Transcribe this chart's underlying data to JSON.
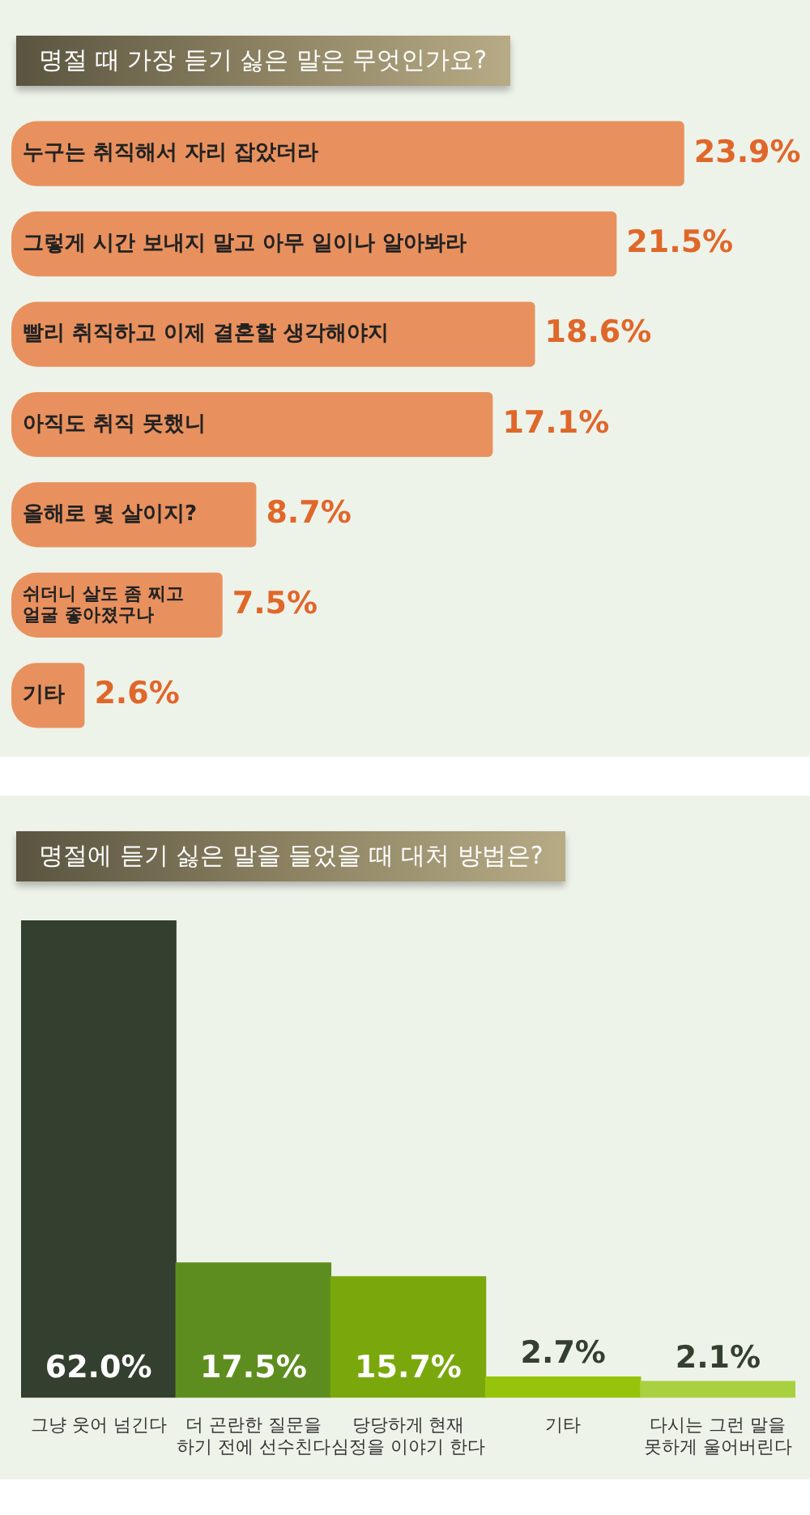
{
  "chart_data": [
    {
      "type": "bar",
      "orientation": "horizontal",
      "title": "명절 때 가장 듣기 싫은 말은 무엇인가요?",
      "categories": [
        "누구는 취직해서 자리 잡았더라",
        "그렇게 시간 보내지 말고 아무 일이나 알아봐라",
        "빨리 취직하고 이제 결혼할 생각해야지",
        "아직도 취직 못했니",
        "올해로 몇 살이지?",
        "쉬더니 살도 좀 찌고\n얼굴 좋아졌구나",
        "기타"
      ],
      "values": [
        23.9,
        21.5,
        18.6,
        17.1,
        8.7,
        7.5,
        2.6
      ],
      "value_labels": [
        "23.9%",
        "21.5%",
        "18.6%",
        "17.1%",
        "8.7%",
        "7.5%",
        "2.6%"
      ],
      "color": "#e8915e"
    },
    {
      "type": "bar",
      "title": "명절에 듣기 싫은 말을 들었을 때 대처 방법은?",
      "categories": [
        "그냥 웃어 넘긴다",
        "더 곤란한 질문을\n하기 전에 선수친다",
        "당당하게 현재\n심정을 이야기 한다",
        "기타",
        "다시는 그런 말을\n못하게 울어버린다"
      ],
      "values": [
        62.0,
        17.5,
        15.7,
        2.7,
        2.1
      ],
      "value_labels": [
        "62.0%",
        "17.5%",
        "15.7%",
        "2.7%",
        "2.1%"
      ],
      "colors": [
        "#333f2f",
        "#5e8d1f",
        "#7aa80c",
        "#97c40b",
        "#a9d040"
      ]
    }
  ]
}
